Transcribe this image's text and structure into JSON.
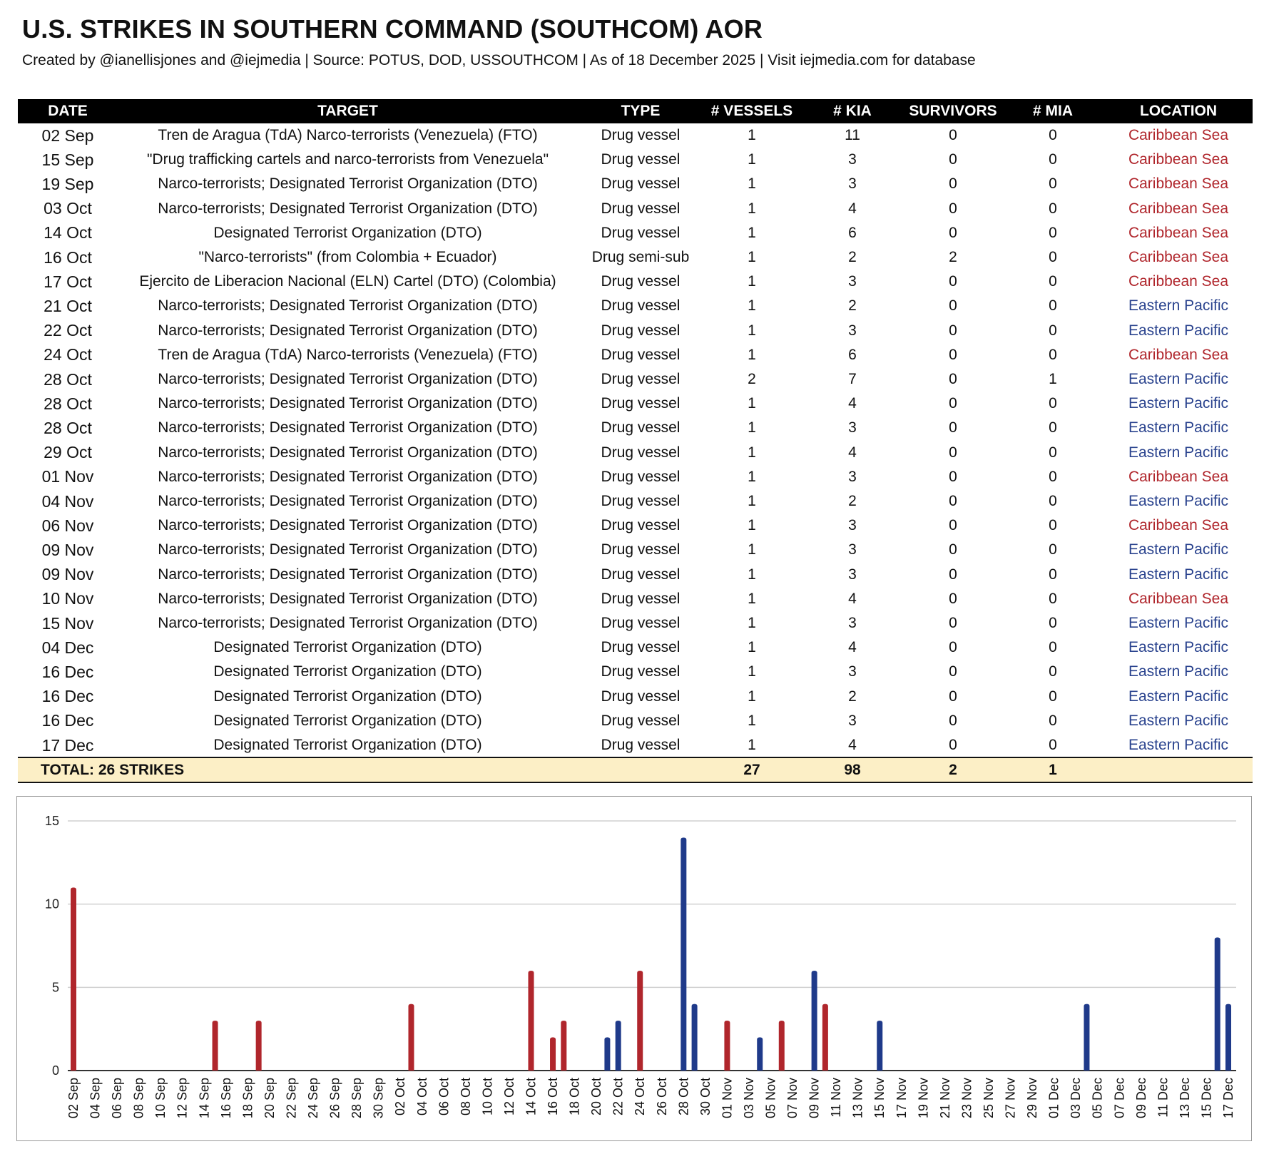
{
  "header": {
    "title": "U.S. STRIKES IN SOUTHERN COMMAND (SOUTHCOM) AOR",
    "subtitle": "Created by @ianellisjones and @iejmedia | Source: POTUS, DOD, USSOUTHCOM | As of 18 December 2025 | Visit iejmedia.com for database"
  },
  "colors": {
    "caribbean": "#b0262c",
    "eastern_pacific": "#1f3a8a",
    "total_row_bg": "#fcefc6"
  },
  "table": {
    "columns": [
      "DATE",
      "TARGET",
      "TYPE",
      "# VESSELS",
      "# KIA",
      "SURVIVORS",
      "# MIA",
      "LOCATION"
    ],
    "rows": [
      [
        "02 Sep",
        "Tren de Aragua (TdA) Narco-terrorists (Venezuela) (FTO)",
        "Drug vessel",
        "1",
        "11",
        "0",
        "0",
        "Caribbean Sea"
      ],
      [
        "15 Sep",
        "\"Drug trafficking cartels and narco-terrorists from Venezuela\"",
        "Drug vessel",
        "1",
        "3",
        "0",
        "0",
        "Caribbean Sea"
      ],
      [
        "19 Sep",
        "Narco-terrorists; Designated Terrorist Organization (DTO)",
        "Drug vessel",
        "1",
        "3",
        "0",
        "0",
        "Caribbean Sea"
      ],
      [
        "03 Oct",
        "Narco-terrorists; Designated Terrorist Organization (DTO)",
        "Drug vessel",
        "1",
        "4",
        "0",
        "0",
        "Caribbean Sea"
      ],
      [
        "14 Oct",
        "Designated Terrorist Organization (DTO)",
        "Drug vessel",
        "1",
        "6",
        "0",
        "0",
        "Caribbean Sea"
      ],
      [
        "16 Oct",
        "\"Narco-terrorists\" (from Colombia + Ecuador)",
        "Drug semi-sub",
        "1",
        "2",
        "2",
        "0",
        "Caribbean Sea"
      ],
      [
        "17 Oct",
        "Ejercito de Liberacion Nacional (ELN) Cartel (DTO) (Colombia)",
        "Drug vessel",
        "1",
        "3",
        "0",
        "0",
        "Caribbean Sea"
      ],
      [
        "21 Oct",
        "Narco-terrorists; Designated Terrorist Organization (DTO)",
        "Drug vessel",
        "1",
        "2",
        "0",
        "0",
        "Eastern Pacific"
      ],
      [
        "22 Oct",
        "Narco-terrorists; Designated Terrorist Organization (DTO)",
        "Drug vessel",
        "1",
        "3",
        "0",
        "0",
        "Eastern Pacific"
      ],
      [
        "24 Oct",
        "Tren de Aragua (TdA) Narco-terrorists (Venezuela) (FTO)",
        "Drug vessel",
        "1",
        "6",
        "0",
        "0",
        "Caribbean Sea"
      ],
      [
        "28 Oct",
        "Narco-terrorists; Designated Terrorist Organization (DTO)",
        "Drug vessel",
        "2",
        "7",
        "0",
        "1",
        "Eastern Pacific"
      ],
      [
        "28 Oct",
        "Narco-terrorists; Designated Terrorist Organization (DTO)",
        "Drug vessel",
        "1",
        "4",
        "0",
        "0",
        "Eastern Pacific"
      ],
      [
        "28 Oct",
        "Narco-terrorists; Designated Terrorist Organization (DTO)",
        "Drug vessel",
        "1",
        "3",
        "0",
        "0",
        "Eastern Pacific"
      ],
      [
        "29 Oct",
        "Narco-terrorists; Designated Terrorist Organization (DTO)",
        "Drug vessel",
        "1",
        "4",
        "0",
        "0",
        "Eastern Pacific"
      ],
      [
        "01 Nov",
        "Narco-terrorists; Designated Terrorist Organization (DTO)",
        "Drug vessel",
        "1",
        "3",
        "0",
        "0",
        "Caribbean Sea"
      ],
      [
        "04 Nov",
        "Narco-terrorists; Designated Terrorist Organization (DTO)",
        "Drug vessel",
        "1",
        "2",
        "0",
        "0",
        "Eastern Pacific"
      ],
      [
        "06 Nov",
        "Narco-terrorists; Designated Terrorist Organization (DTO)",
        "Drug vessel",
        "1",
        "3",
        "0",
        "0",
        "Caribbean Sea"
      ],
      [
        "09 Nov",
        "Narco-terrorists; Designated Terrorist Organization (DTO)",
        "Drug vessel",
        "1",
        "3",
        "0",
        "0",
        "Eastern Pacific"
      ],
      [
        "09 Nov",
        "Narco-terrorists; Designated Terrorist Organization (DTO)",
        "Drug vessel",
        "1",
        "3",
        "0",
        "0",
        "Eastern Pacific"
      ],
      [
        "10 Nov",
        "Narco-terrorists; Designated Terrorist Organization (DTO)",
        "Drug vessel",
        "1",
        "4",
        "0",
        "0",
        "Caribbean Sea"
      ],
      [
        "15 Nov",
        "Narco-terrorists; Designated Terrorist Organization (DTO)",
        "Drug vessel",
        "1",
        "3",
        "0",
        "0",
        "Eastern Pacific"
      ],
      [
        "04 Dec",
        "Designated Terrorist Organization (DTO)",
        "Drug vessel",
        "1",
        "4",
        "0",
        "0",
        "Eastern Pacific"
      ],
      [
        "16 Dec",
        "Designated Terrorist Organization (DTO)",
        "Drug vessel",
        "1",
        "3",
        "0",
        "0",
        "Eastern Pacific"
      ],
      [
        "16 Dec",
        "Designated Terrorist Organization (DTO)",
        "Drug vessel",
        "1",
        "2",
        "0",
        "0",
        "Eastern Pacific"
      ],
      [
        "16 Dec",
        "Designated Terrorist Organization (DTO)",
        "Drug vessel",
        "1",
        "3",
        "0",
        "0",
        "Eastern Pacific"
      ],
      [
        "17 Dec",
        "Designated Terrorist Organization (DTO)",
        "Drug vessel",
        "1",
        "4",
        "0",
        "0",
        "Eastern Pacific"
      ]
    ],
    "total": {
      "label": "TOTAL: 26 STRIKES",
      "vessels": "27",
      "kia": "98",
      "survivors": "2",
      "mia": "1"
    }
  },
  "chart_data": {
    "type": "bar",
    "title": "",
    "xlabel": "",
    "ylabel": "",
    "ylim": [
      0,
      15
    ],
    "yticks": [
      0,
      5,
      10,
      15
    ],
    "grid": true,
    "x_range": [
      "02 Sep",
      "17 Dec"
    ],
    "xtick_labels": [
      "02 Sep",
      "04 Sep",
      "06 Sep",
      "08 Sep",
      "10 Sep",
      "12 Sep",
      "14 Sep",
      "16 Sep",
      "18 Sep",
      "20 Sep",
      "22 Sep",
      "24 Sep",
      "26 Sep",
      "28 Sep",
      "30 Sep",
      "02 Oct",
      "04 Oct",
      "06 Oct",
      "08 Oct",
      "10 Oct",
      "12 Oct",
      "14 Oct",
      "16 Oct",
      "18 Oct",
      "20 Oct",
      "22 Oct",
      "24 Oct",
      "26 Oct",
      "28 Oct",
      "30 Oct",
      "01 Nov",
      "03 Nov",
      "05 Nov",
      "07 Nov",
      "09 Nov",
      "11 Nov",
      "13 Nov",
      "15 Nov",
      "17 Nov",
      "19 Nov",
      "21 Nov",
      "23 Nov",
      "25 Nov",
      "27 Nov",
      "29 Nov",
      "01 Dec",
      "03 Dec",
      "05 Dec",
      "07 Dec",
      "09 Dec",
      "11 Dec",
      "13 Dec",
      "15 Dec",
      "17 Dec"
    ],
    "bars": [
      {
        "date": "02 Sep",
        "value": 11,
        "location": "Caribbean Sea"
      },
      {
        "date": "15 Sep",
        "value": 3,
        "location": "Caribbean Sea"
      },
      {
        "date": "19 Sep",
        "value": 3,
        "location": "Caribbean Sea"
      },
      {
        "date": "03 Oct",
        "value": 4,
        "location": "Caribbean Sea"
      },
      {
        "date": "14 Oct",
        "value": 6,
        "location": "Caribbean Sea"
      },
      {
        "date": "16 Oct",
        "value": 2,
        "location": "Caribbean Sea"
      },
      {
        "date": "17 Oct",
        "value": 3,
        "location": "Caribbean Sea"
      },
      {
        "date": "21 Oct",
        "value": 2,
        "location": "Eastern Pacific"
      },
      {
        "date": "22 Oct",
        "value": 3,
        "location": "Eastern Pacific"
      },
      {
        "date": "24 Oct",
        "value": 6,
        "location": "Caribbean Sea"
      },
      {
        "date": "28 Oct",
        "value": 14,
        "location": "Eastern Pacific"
      },
      {
        "date": "29 Oct",
        "value": 4,
        "location": "Eastern Pacific"
      },
      {
        "date": "01 Nov",
        "value": 3,
        "location": "Caribbean Sea"
      },
      {
        "date": "04 Nov",
        "value": 2,
        "location": "Eastern Pacific"
      },
      {
        "date": "06 Nov",
        "value": 3,
        "location": "Caribbean Sea"
      },
      {
        "date": "09 Nov",
        "value": 6,
        "location": "Eastern Pacific"
      },
      {
        "date": "10 Nov",
        "value": 4,
        "location": "Caribbean Sea"
      },
      {
        "date": "15 Nov",
        "value": 3,
        "location": "Eastern Pacific"
      },
      {
        "date": "04 Dec",
        "value": 4,
        "location": "Eastern Pacific"
      },
      {
        "date": "16 Dec",
        "value": 8,
        "location": "Eastern Pacific"
      },
      {
        "date": "17 Dec",
        "value": 4,
        "location": "Eastern Pacific"
      }
    ]
  }
}
